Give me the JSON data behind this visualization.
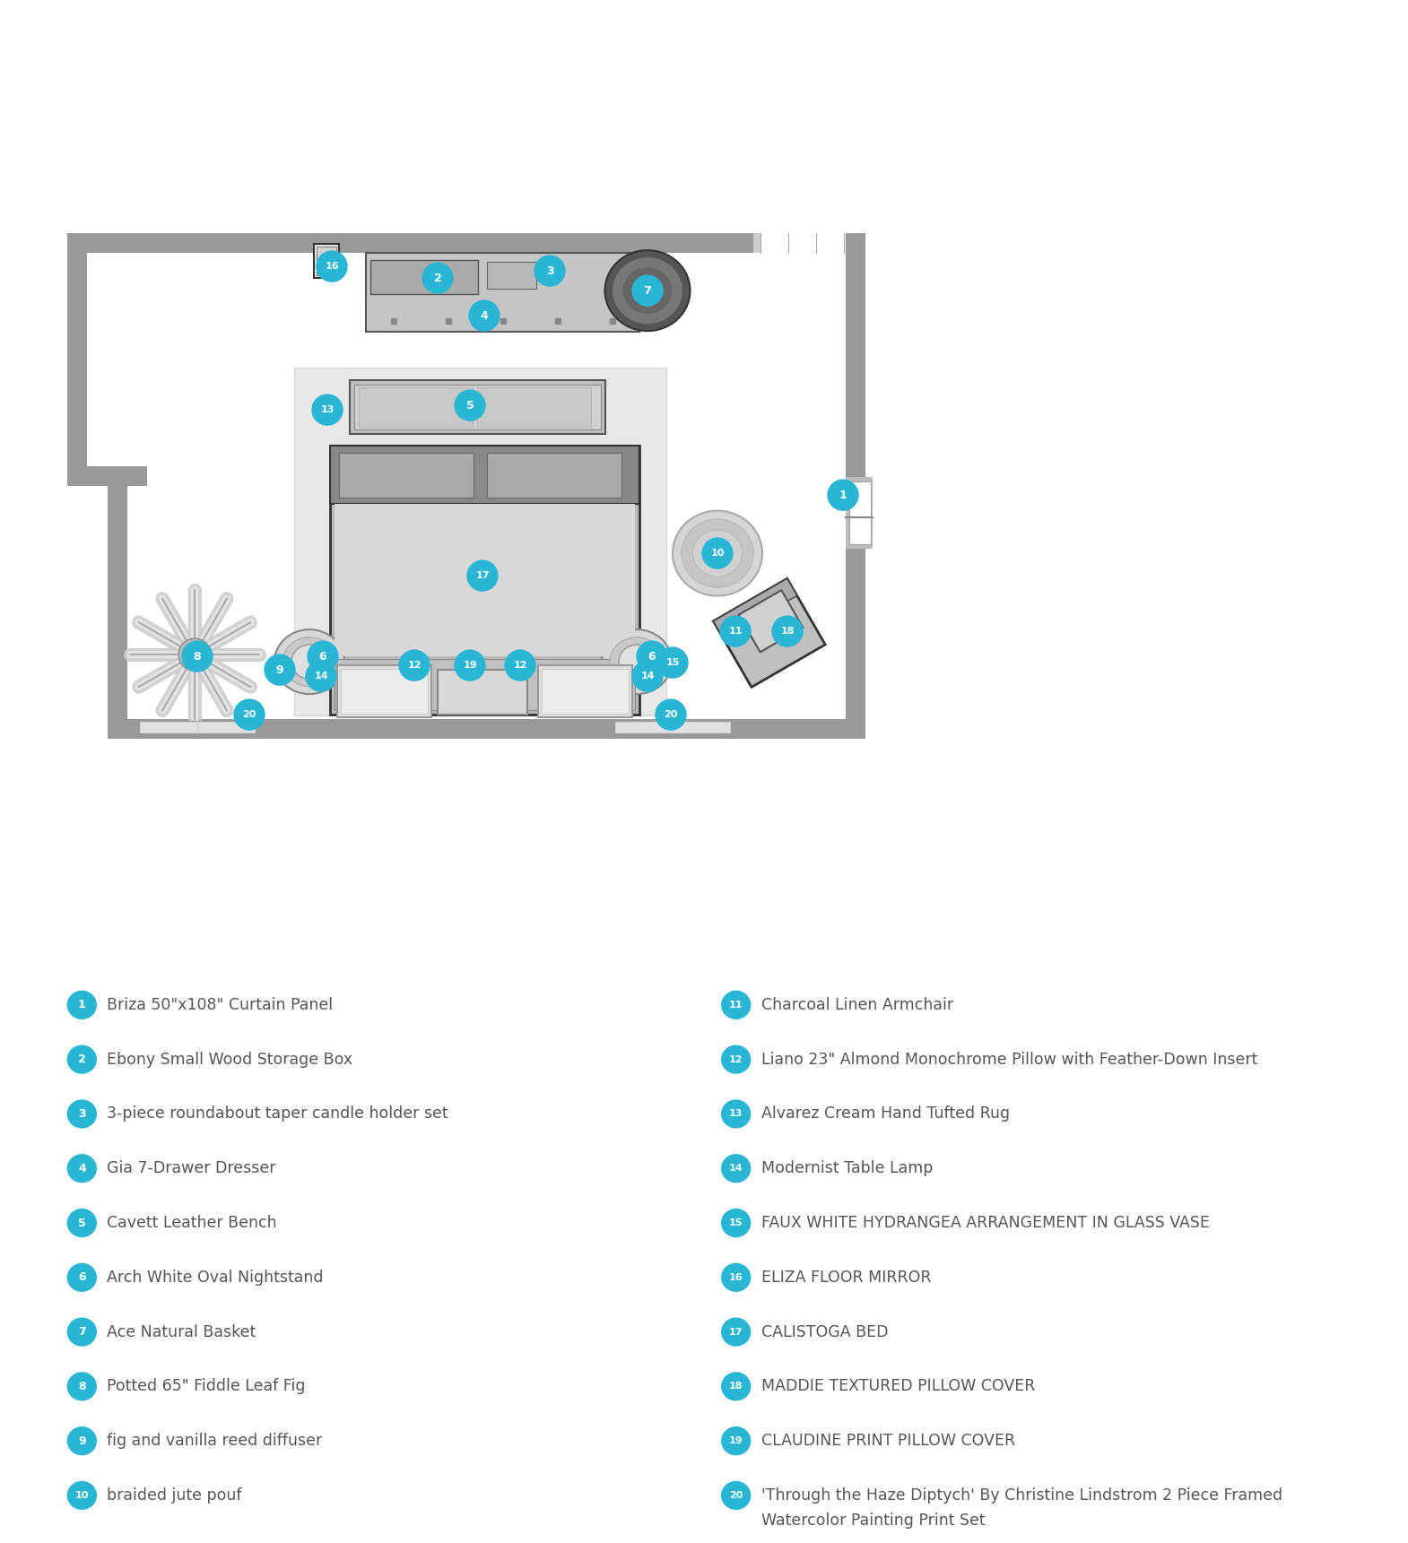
{
  "bg_color": "#ffffff",
  "label_color": "#29b6d5",
  "text_color": "#555555",
  "legend_items_left": [
    {
      "num": 1,
      "text": "Briza 50\"x108\" Curtain Panel"
    },
    {
      "num": 2,
      "text": "Ebony Small Wood Storage Box"
    },
    {
      "num": 3,
      "text": "3-piece roundabout taper candle holder set"
    },
    {
      "num": 4,
      "text": "Gia 7-Drawer Dresser"
    },
    {
      "num": 5,
      "text": "Cavett Leather Bench"
    },
    {
      "num": 6,
      "text": "Arch White Oval Nightstand"
    },
    {
      "num": 7,
      "text": "Ace Natural Basket"
    },
    {
      "num": 8,
      "text": "Potted 65\" Fiddle Leaf Fig"
    },
    {
      "num": 9,
      "text": "fig and vanilla reed diffuser"
    },
    {
      "num": 10,
      "text": "braided jute pouf"
    }
  ],
  "legend_items_right": [
    {
      "num": 11,
      "text": "Charcoal Linen Armchair"
    },
    {
      "num": 12,
      "text": "Liano 23\" Almond Monochrome Pillow with Feather-Down Insert"
    },
    {
      "num": 13,
      "text": "Alvarez Cream Hand Tufted Rug"
    },
    {
      "num": 14,
      "text": "Modernist Table Lamp"
    },
    {
      "num": 15,
      "text": "FAUX WHITE HYDRANGEA ARRANGEMENT IN GLASS VASE"
    },
    {
      "num": 16,
      "text": "ELIZA FLOOR MIRROR"
    },
    {
      "num": 17,
      "text": "CALISTOGA BED"
    },
    {
      "num": 18,
      "text": "MADDIE TEXTURED PILLOW COVER"
    },
    {
      "num": 19,
      "text": "CLAUDINE PRINT PILLOW COVER"
    },
    {
      "num": 20,
      "text": "'Through the Haze Diptych' By Christine Lindstrom 2 Piece Framed\nWatercolor Painting Print Set"
    }
  ]
}
